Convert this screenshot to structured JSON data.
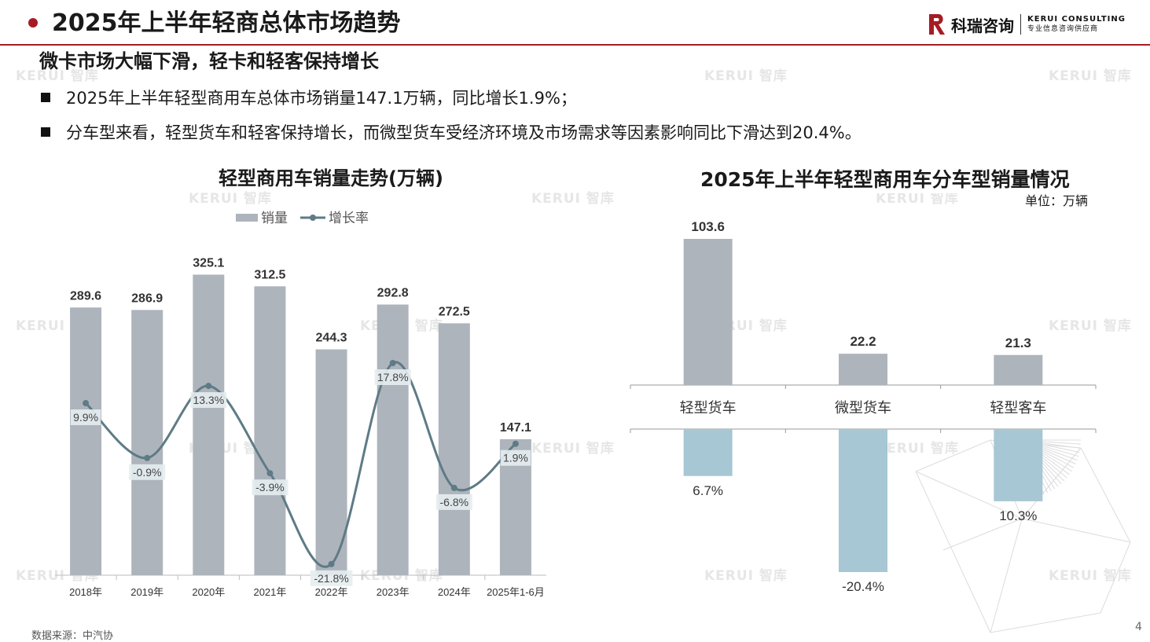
{
  "header": {
    "title": "2025年上半年轻商总体市场趋势",
    "brand_cn": "科瑞咨询",
    "brand_en": "KERUI CONSULTING",
    "brand_tagline": "专业信息咨询供应商",
    "accent": "#a61c24"
  },
  "subtitle": "微卡市场大幅下滑，轻卡和轻客保持增长",
  "bullets": [
    "2025年上半年轻型商用车总体市场销量147.1万辆，同比增长1.9%；",
    "分车型来看，轻型货车和轻客保持增长，而微型货车受经济环境及市场需求等因素影响同比下滑达到20.4%。"
  ],
  "watermark": {
    "logo": "KERUI",
    "text": "智库"
  },
  "footer": {
    "source": "数据来源：中汽协",
    "page": "4"
  },
  "chart_data": [
    {
      "type": "bar",
      "title": "轻型商用车销量走势(万辆)",
      "categories": [
        "2018年",
        "2019年",
        "2020年",
        "2021年",
        "2022年",
        "2023年",
        "2024年",
        "2025年1-6月"
      ],
      "series": [
        {
          "name": "销量",
          "kind": "bar",
          "values": [
            289.6,
            286.9,
            325.1,
            312.5,
            244.3,
            292.8,
            272.5,
            147.1
          ],
          "color": "#aeb4bc"
        },
        {
          "name": "增长率",
          "kind": "line",
          "values": [
            9.9,
            -0.9,
            13.3,
            -3.9,
            -21.8,
            17.8,
            -6.8,
            1.9
          ],
          "labels": [
            "9.9%",
            "-0.9%",
            "13.3%",
            "-3.9%",
            "-21.8%",
            "17.8%",
            "-6.8%",
            "1.9%"
          ],
          "color": "#5e7b86"
        }
      ],
      "legend": "top"
    },
    {
      "type": "bar",
      "title": "2025年上半年轻型商用车分车型销量情况",
      "unit": "单位：万辆",
      "categories": [
        "轻型货车",
        "微型货车",
        "轻型客车"
      ],
      "series": [
        {
          "kind": "bar",
          "values": [
            103.6,
            22.2,
            21.3
          ],
          "labels": [
            "103.6",
            "22.2",
            "21.3"
          ],
          "color": "#aeb4bc"
        },
        {
          "kind": "bar",
          "values": [
            6.7,
            -20.4,
            10.3
          ],
          "labels": [
            "6.7%",
            "-20.4%",
            "10.3%"
          ],
          "color": "#a6c7d3"
        }
      ]
    }
  ]
}
